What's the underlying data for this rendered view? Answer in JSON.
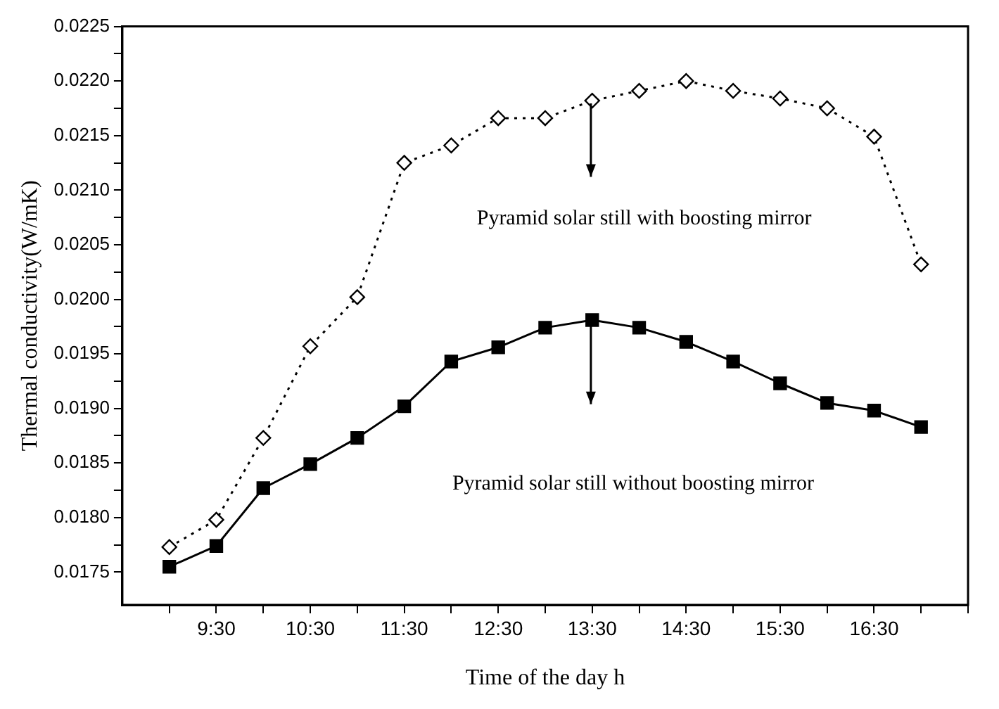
{
  "chart_data": {
    "type": "line",
    "xlabel": "Time of the day h",
    "ylabel": "Thermal conductivity(W/mK)",
    "x": [
      9,
      9.5,
      10,
      10.5,
      11,
      11.5,
      12,
      12.5,
      13,
      13.5,
      14,
      14.5,
      15,
      15.5,
      16,
      16.5,
      17
    ],
    "series": [
      {
        "color": "#000000",
        "marker": "diamond",
        "line_style": "dotted",
        "values": [
          0.01773,
          0.01798,
          0.01873,
          0.01957,
          0.02002,
          0.02125,
          0.02141,
          0.02166,
          0.02166,
          0.02182,
          0.02191,
          0.022,
          0.02191,
          0.02184,
          0.02175,
          0.02149,
          0.02032
        ]
      },
      {
        "color": "#000000",
        "marker": "square",
        "line_style": "solid",
        "values": [
          0.01755,
          0.01774,
          0.01827,
          0.01849,
          0.01873,
          0.01902,
          0.01943,
          0.01956,
          0.01974,
          0.01981,
          0.01974,
          0.01961,
          0.01943,
          0.01923,
          0.01905,
          0.01898,
          0.01883
        ]
      }
    ],
    "xlim": [
      8.5,
      17.5
    ],
    "xticks": [
      {
        "value": 9,
        "label": null
      },
      {
        "value": 9.5,
        "label": "9:30"
      },
      {
        "value": 10,
        "label": null
      },
      {
        "value": 10.5,
        "label": "10:30"
      },
      {
        "value": 11,
        "label": null
      },
      {
        "value": 11.5,
        "label": "11:30"
      },
      {
        "value": 12,
        "label": null
      },
      {
        "value": 12.5,
        "label": "12:30"
      },
      {
        "value": 13,
        "label": null
      },
      {
        "value": 13.5,
        "label": "13:30"
      },
      {
        "value": 14,
        "label": null
      },
      {
        "value": 14.5,
        "label": "14:30"
      },
      {
        "value": 15,
        "label": null
      },
      {
        "value": 15.5,
        "label": "15:30"
      },
      {
        "value": 16,
        "label": null
      },
      {
        "value": 16.5,
        "label": "16:30"
      },
      {
        "value": 17,
        "label": null
      },
      {
        "value": 17.5,
        "label": null
      }
    ],
    "ylim": [
      0.0172,
      0.0225
    ],
    "yticks": [
      {
        "value": 0.0175,
        "label": "0.0175"
      },
      {
        "value": 0.01775,
        "label": null
      },
      {
        "value": 0.018,
        "label": "0.0180"
      },
      {
        "value": 0.01825,
        "label": null
      },
      {
        "value": 0.0185,
        "label": "0.0185"
      },
      {
        "value": 0.01875,
        "label": null
      },
      {
        "value": 0.019,
        "label": "0.0190"
      },
      {
        "value": 0.01925,
        "label": null
      },
      {
        "value": 0.0195,
        "label": "0.0195"
      },
      {
        "value": 0.01975,
        "label": null
      },
      {
        "value": 0.02,
        "label": "0.0200"
      },
      {
        "value": 0.02025,
        "label": null
      },
      {
        "value": 0.0205,
        "label": "0.0205"
      },
      {
        "value": 0.02075,
        "label": null
      },
      {
        "value": 0.021,
        "label": "0.0210"
      },
      {
        "value": 0.02125,
        "label": null
      },
      {
        "value": 0.0215,
        "label": "0.0215"
      },
      {
        "value": 0.02175,
        "label": null
      },
      {
        "value": 0.022,
        "label": "0.0220"
      },
      {
        "value": 0.02225,
        "label": null
      },
      {
        "value": 0.0225,
        "label": "0.0225"
      }
    ],
    "annotations": [
      "Pyramid solar still with boosting mirror",
      "Pyramid solar still without boosting mirror"
    ],
    "grid": false,
    "legend": false
  }
}
